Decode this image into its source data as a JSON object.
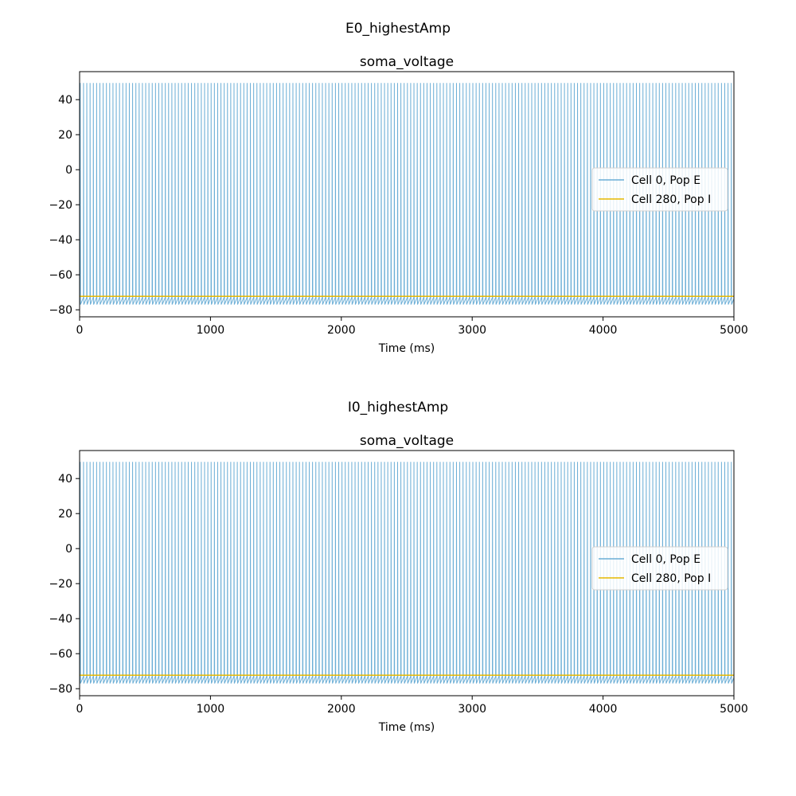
{
  "chart_data": [
    {
      "type": "line",
      "suptitle": "E0_highestAmp",
      "title": "soma_voltage",
      "xlabel": "Time (ms)",
      "ylabel": "",
      "xlim": [
        0,
        5000
      ],
      "ylim": [
        -84,
        56
      ],
      "xticks": [
        0,
        1000,
        2000,
        3000,
        4000,
        5000
      ],
      "yticks": [
        -80,
        -60,
        -40,
        -20,
        0,
        20,
        40
      ],
      "legend": "center-right",
      "grid": false,
      "series": [
        {
          "name": "Cell 0, Pop E",
          "color": "#6baed6",
          "spike_period_ms": 25,
          "spike_peak": 49.5,
          "trough": -77,
          "rest": -73,
          "t_start": 5,
          "t_end": 5000
        },
        {
          "name": "Cell 280, Pop I",
          "color": "#e6b800",
          "constant": -72.3,
          "t_start": 0,
          "t_end": 5000
        }
      ]
    },
    {
      "type": "line",
      "suptitle": "I0_highestAmp",
      "title": "soma_voltage",
      "xlabel": "Time (ms)",
      "ylabel": "",
      "xlim": [
        0,
        5000
      ],
      "ylim": [
        -84,
        56
      ],
      "xticks": [
        0,
        1000,
        2000,
        3000,
        4000,
        5000
      ],
      "yticks": [
        -80,
        -60,
        -40,
        -20,
        0,
        20,
        40
      ],
      "legend": "center-right",
      "grid": false,
      "series": [
        {
          "name": "Cell 0, Pop E",
          "color": "#6baed6",
          "spike_period_ms": 25,
          "spike_peak": 49.5,
          "trough": -77,
          "rest": -73,
          "t_start": 5,
          "t_end": 5000
        },
        {
          "name": "Cell 280, Pop I",
          "color": "#e6b800",
          "constant": -72.3,
          "t_start": 0,
          "t_end": 5000
        }
      ]
    }
  ]
}
